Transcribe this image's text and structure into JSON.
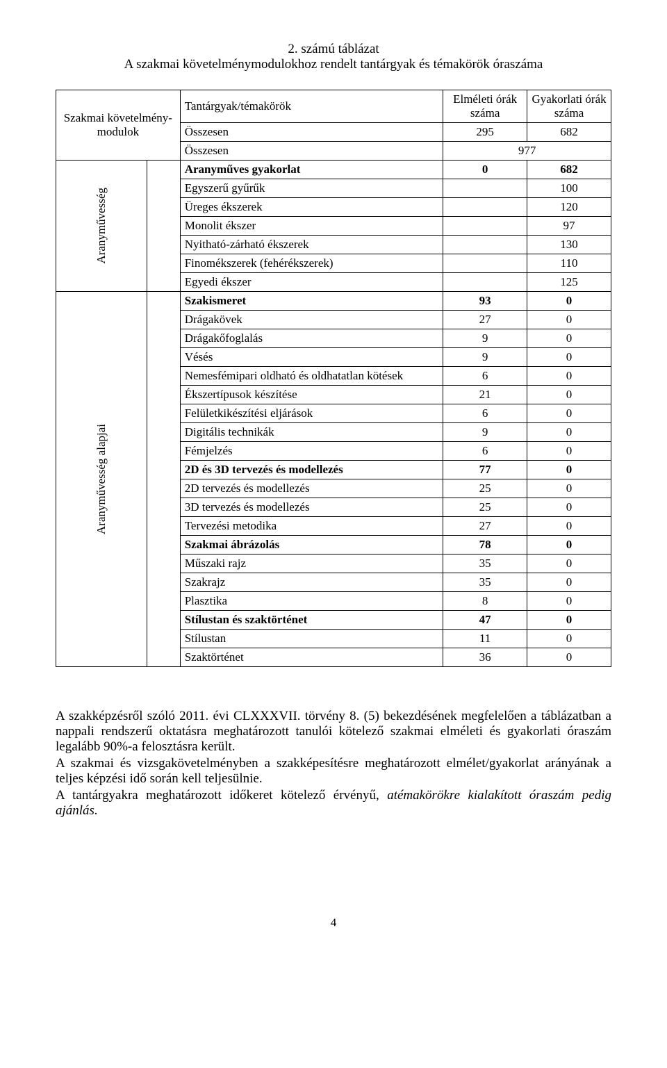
{
  "title": {
    "line1": "2. számú táblázat",
    "line2": "A szakmai követelménymodulokhoz rendelt tantárgyak és témakörök óraszáma"
  },
  "headers": {
    "modules": "Szakmai követelmény-modulok",
    "subjects": "Tantárgyak/témakörök",
    "theory": "Elméleti órák száma",
    "practice": "Gyakorlati órák száma"
  },
  "total1": {
    "label": "Összesen",
    "theory": "295",
    "practice": "682"
  },
  "total2": {
    "label": "Összesen",
    "value": "977"
  },
  "group1": {
    "label": "Aranyművesség",
    "rows": [
      {
        "name": "Aranyműves gyakorlat",
        "t": "0",
        "p": "682",
        "bold": true
      },
      {
        "name": "Egyszerű gyűrűk",
        "t": "",
        "p": "100"
      },
      {
        "name": "Üreges ékszerek",
        "t": "",
        "p": "120"
      },
      {
        "name": "Monolit ékszer",
        "t": "",
        "p": "97"
      },
      {
        "name": "Nyitható-zárható ékszerek",
        "t": "",
        "p": "130"
      },
      {
        "name": "Finomékszerek (fehérékszerek)",
        "t": "",
        "p": "110"
      },
      {
        "name": "Egyedi ékszer",
        "t": "",
        "p": "125"
      }
    ]
  },
  "group2": {
    "label": "Aranyművesség alapjai",
    "rows": [
      {
        "name": "Szakismeret",
        "t": "93",
        "p": "0",
        "bold": true
      },
      {
        "name": "Drágakövek",
        "t": "27",
        "p": "0"
      },
      {
        "name": "Drágakőfoglalás",
        "t": "9",
        "p": "0"
      },
      {
        "name": "Vésés",
        "t": "9",
        "p": "0"
      },
      {
        "name": "Nemesfémipari oldható és oldhatatlan kötések",
        "t": "6",
        "p": "0"
      },
      {
        "name": "Ékszertípusok készítése",
        "t": "21",
        "p": "0"
      },
      {
        "name": "Felületkikészítési eljárások",
        "t": "6",
        "p": "0"
      },
      {
        "name": "Digitális technikák",
        "t": "9",
        "p": "0"
      },
      {
        "name": "Fémjelzés",
        "t": "6",
        "p": "0"
      },
      {
        "name": "2D és 3D tervezés és modellezés",
        "t": "77",
        "p": "0",
        "bold": true
      },
      {
        "name": "2D tervezés és modellezés",
        "t": "25",
        "p": "0"
      },
      {
        "name": "3D tervezés és modellezés",
        "t": "25",
        "p": "0"
      },
      {
        "name": "Tervezési metodika",
        "t": "27",
        "p": "0"
      },
      {
        "name": "Szakmai ábrázolás",
        "t": "78",
        "p": "0",
        "bold": true
      },
      {
        "name": "Műszaki rajz",
        "t": "35",
        "p": "0"
      },
      {
        "name": "Szakrajz",
        "t": "35",
        "p": "0"
      },
      {
        "name": "Plasztika",
        "t": "8",
        "p": "0"
      },
      {
        "name": "Stílustan és szaktörténet",
        "t": "47",
        "p": "0",
        "bold": true
      },
      {
        "name": "Stílustan",
        "t": "11",
        "p": "0"
      },
      {
        "name": "Szaktörténet",
        "t": "36",
        "p": "0"
      }
    ]
  },
  "paragraphs": {
    "p1": "A szakképzésről szóló 2011. évi CLXXXVII. törvény 8. (5) bekezdésének megfelelően a táblázatban a nappali rendszerű oktatásra meghatározott tanulói kötelező szakmai elméleti és gyakorlati óraszám legalább 90%-a felosztásra került.",
    "p2": "A szakmai és vizsgakövetelményben a szakképesítésre meghatározott elmélet/gyakorlat arányának a teljes képzési idő során kell teljesülnie.",
    "p3a": "A tantárgyakra meghatározott időkeret kötelező érvényű, ",
    "p3b": "atémakörökre kialakított óraszám pedig ajánlás."
  },
  "pageNumber": "4"
}
